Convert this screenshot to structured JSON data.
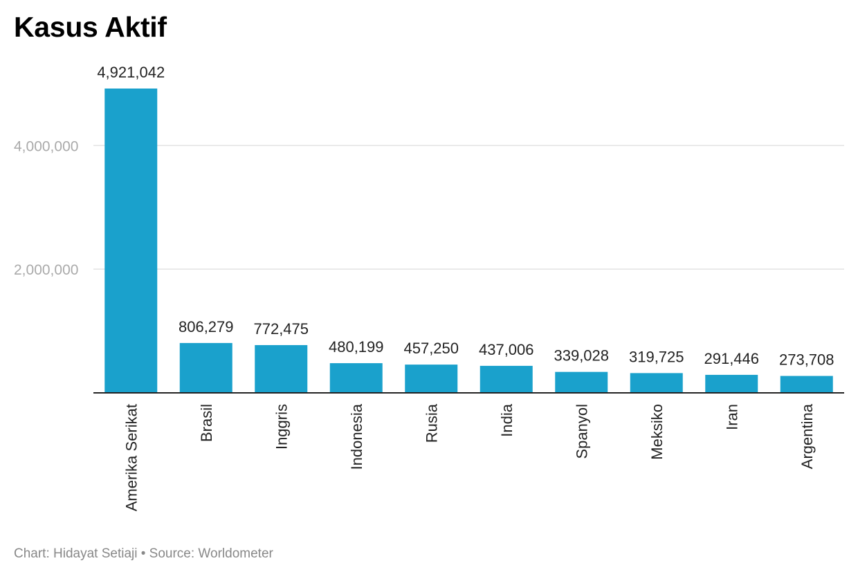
{
  "chart_data": {
    "type": "bar",
    "title": "Kasus Aktif",
    "xlabel": "",
    "ylabel": "",
    "categories": [
      "Amerika Serikat",
      "Brasil",
      "Inggris",
      "Indonesia",
      "Rusia",
      "India",
      "Spanyol",
      "Meksiko",
      "Iran",
      "Argentina"
    ],
    "values": [
      4921042,
      806279,
      772475,
      480199,
      457250,
      437006,
      339028,
      319725,
      291446,
      273708
    ],
    "value_labels": [
      "4,921,042",
      "806,279",
      "772,475",
      "480,199",
      "457,250",
      "437,006",
      "339,028",
      "319,725",
      "291,446",
      "273,708"
    ],
    "yticks": [
      2000000,
      4000000
    ],
    "ytick_labels": [
      "2,000,000",
      "4,000,000"
    ],
    "ylim": [
      0,
      4921042
    ],
    "grid": true,
    "legend": "none",
    "bar_color": "#1aa1cc"
  },
  "footer": {
    "credit": "Chart: Hidayat Setiaji • Source: Worldometer"
  }
}
